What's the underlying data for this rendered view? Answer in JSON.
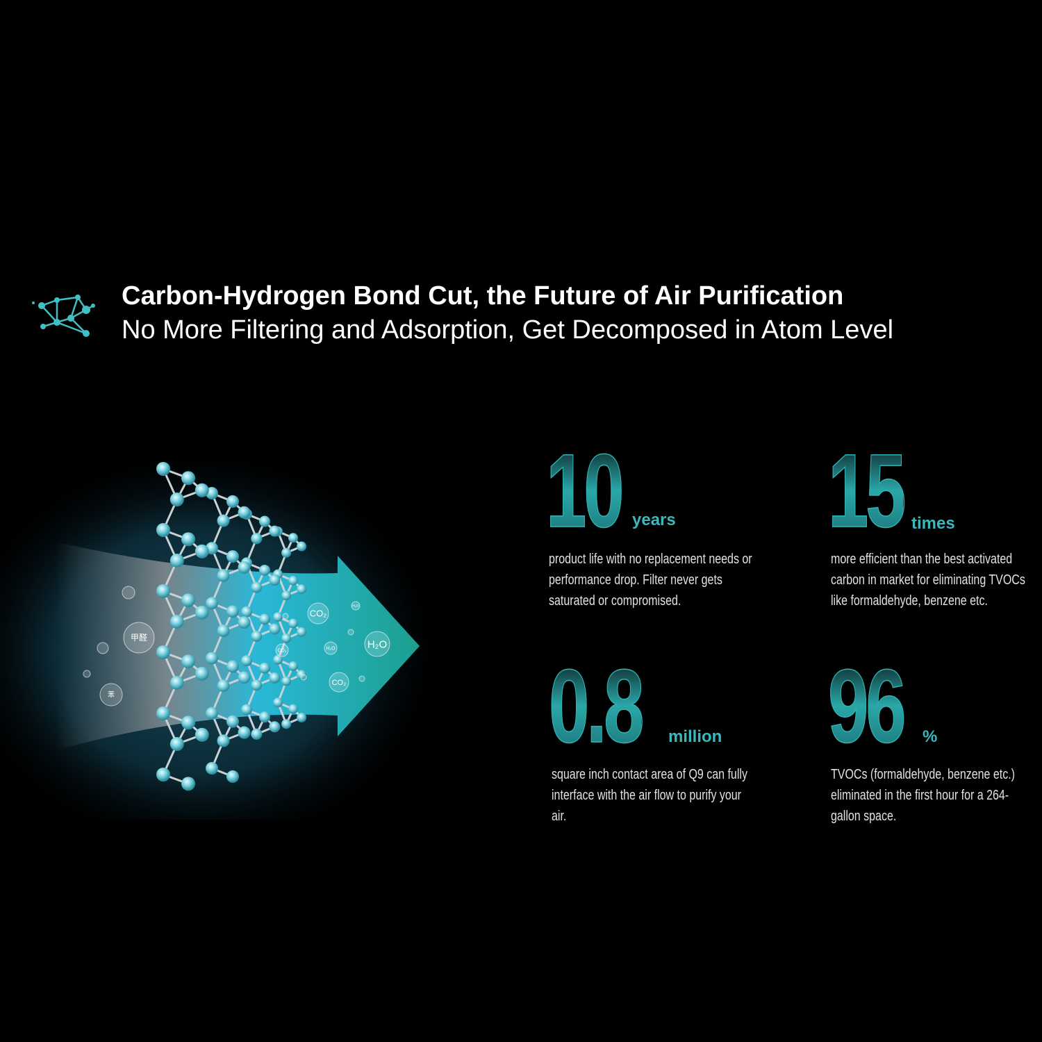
{
  "header": {
    "icon": "molecule-network-icon",
    "title": "Carbon-Hydrogen Bond Cut, the Future of Air Purification",
    "subtitle": "No More Filtering and Adsorption, Get Decomposed in Atom Level"
  },
  "illustration": {
    "pollutant_labels": [
      "甲醛",
      "苯"
    ],
    "output_labels": [
      "CO₂",
      "H₂O",
      "CO₂",
      "H₂O",
      "CO₂",
      "H₂O"
    ],
    "colors": {
      "arrow": "#1fa8a0",
      "glow": "#0e3a4a",
      "atom": "#7fd3e0"
    }
  },
  "stats": [
    {
      "value": "10",
      "unit": "years",
      "lines": [
        "product life with no replacement needs or",
        "performance drop. Filter never gets",
        "saturated or compromised."
      ]
    },
    {
      "value": "15",
      "unit": "times",
      "lines": [
        "more efficient than the best activated",
        "carbon in market for eliminating TVOCs",
        "like formaldehyde, benzene etc."
      ]
    },
    {
      "value": "0.8",
      "unit": "million",
      "lines": [
        "square inch contact area of Q9 can fully",
        "interface with the air flow to purify your",
        "air."
      ]
    },
    {
      "value": "96",
      "unit": "%",
      "lines": [
        "TVOCs (formaldehyde, benzene etc.)",
        "eliminated in the first hour for a 264-",
        "gallon space."
      ]
    }
  ],
  "accent": "#3ab8bb"
}
